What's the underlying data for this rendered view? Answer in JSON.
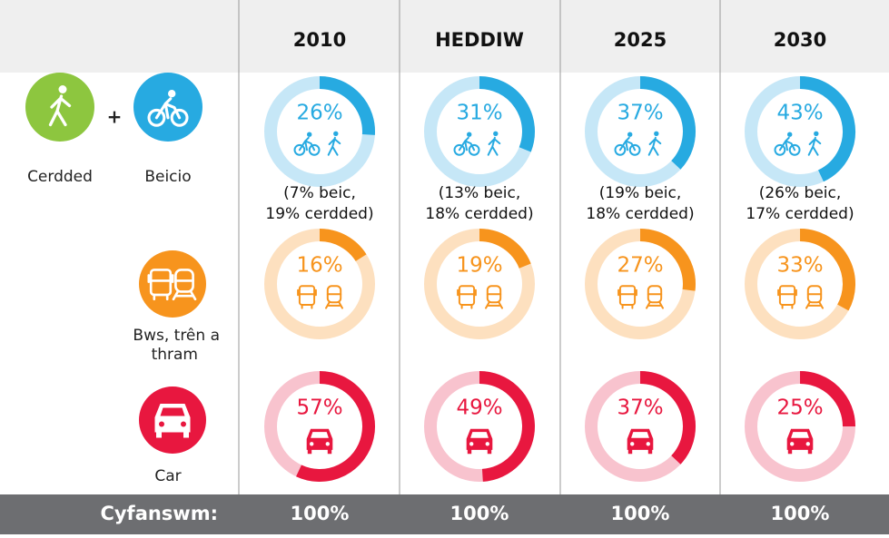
{
  "columns": [
    "2010",
    "HEDDIW",
    "2025",
    "2030"
  ],
  "modes": [
    {
      "labels": [
        "Cerdded",
        "Beicio"
      ],
      "color": "#27aae1",
      "track": "#c6e7f7",
      "icon_colors": [
        "#8dc63f",
        "#27aae1"
      ],
      "values": [
        26,
        31,
        37,
        43
      ],
      "value_labels": [
        "26%",
        "31%",
        "37%",
        "43%"
      ],
      "notes": [
        [
          "(7% beic,",
          "19% cerdded)"
        ],
        [
          "(13% beic,",
          "18% cerdded)"
        ],
        [
          "(19% beic,",
          "18% cerdded)"
        ],
        [
          "(26% beic,",
          "17% cerdded)"
        ]
      ]
    },
    {
      "labels": [
        "Bws, trên a",
        "thram"
      ],
      "color": "#f7941d",
      "track": "#fde0bf",
      "icon_colors": [
        "#f7941d"
      ],
      "values": [
        16,
        19,
        27,
        33
      ],
      "value_labels": [
        "16%",
        "19%",
        "27%",
        "33%"
      ]
    },
    {
      "labels": [
        "Car"
      ],
      "color": "#e8173f",
      "track": "#f8c3ce",
      "icon_colors": [
        "#e8173f"
      ],
      "values": [
        57,
        49,
        37,
        25
      ],
      "value_labels": [
        "57%",
        "49%",
        "37%",
        "25%"
      ]
    }
  ],
  "total": {
    "label": "Cyfanswm:",
    "values": [
      100,
      100,
      100,
      100
    ],
    "value_labels": [
      "100%",
      "100%",
      "100%",
      "100%"
    ]
  }
}
